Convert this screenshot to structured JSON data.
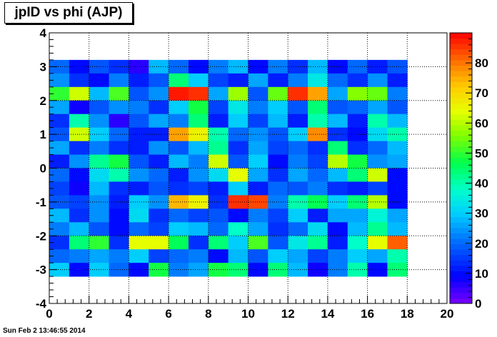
{
  "title": "jpID vs phi (AJP)",
  "timestamp": "Sun Feb  2 13:46:55 2014",
  "chart_data": {
    "type": "heatmap",
    "title": "jpID vs phi (AJP)",
    "xlabel": "",
    "ylabel": "",
    "xlim": [
      0,
      20
    ],
    "ylim": [
      -4,
      4
    ],
    "x_ticks": [
      "0",
      "2",
      "4",
      "6",
      "8",
      "10",
      "12",
      "14",
      "16",
      "18",
      "20"
    ],
    "y_ticks": [
      "-4",
      "-3",
      "-2",
      "-1",
      "0",
      "1",
      "2",
      "3",
      "4"
    ],
    "z_range": [
      0,
      90
    ],
    "z_ticks": [
      "0",
      "10",
      "20",
      "30",
      "40",
      "50",
      "60",
      "70",
      "80"
    ],
    "grid": true,
    "colorbar": "right",
    "x_edges": [
      0,
      1,
      2,
      3,
      4,
      5,
      6,
      7,
      8,
      9,
      10,
      11,
      12,
      13,
      14,
      15,
      16,
      17,
      18
    ],
    "y_edges": [
      -3.2,
      -2.8,
      -2.4,
      -2.0,
      -1.6,
      -1.2,
      -0.8,
      -0.4,
      0.0,
      0.4,
      0.8,
      1.2,
      1.6,
      2.0,
      2.4,
      2.8,
      3.2
    ],
    "z_rows_top_to_bottom": [
      [
        20,
        10,
        18,
        14,
        6,
        28,
        20,
        10,
        22,
        28,
        10,
        22,
        14,
        28,
        10,
        20,
        12,
        18
      ],
      [
        24,
        14,
        10,
        22,
        12,
        18,
        44,
        30,
        16,
        12,
        26,
        12,
        22,
        34,
        20,
        14,
        24,
        12
      ],
      [
        50,
        62,
        28,
        52,
        18,
        24,
        88,
        86,
        26,
        58,
        18,
        54,
        86,
        76,
        26,
        56,
        54,
        22
      ],
      [
        26,
        8,
        18,
        24,
        22,
        14,
        30,
        48,
        16,
        34,
        22,
        30,
        18,
        44,
        18,
        20,
        26,
        18
      ],
      [
        14,
        40,
        24,
        6,
        18,
        26,
        22,
        44,
        12,
        30,
        16,
        28,
        12,
        40,
        28,
        12,
        40,
        28
      ],
      [
        18,
        62,
        30,
        20,
        12,
        12,
        76,
        66,
        40,
        20,
        24,
        18,
        30,
        78,
        14,
        10,
        32,
        40
      ],
      [
        26,
        14,
        22,
        14,
        12,
        24,
        18,
        28,
        42,
        14,
        26,
        16,
        20,
        14,
        44,
        14,
        20,
        28
      ],
      [
        12,
        24,
        42,
        48,
        18,
        12,
        28,
        22,
        62,
        18,
        30,
        10,
        22,
        16,
        60,
        48,
        24,
        26
      ],
      [
        20,
        10,
        32,
        40,
        24,
        20,
        12,
        24,
        32,
        64,
        26,
        14,
        26,
        20,
        28,
        44,
        62,
        10
      ],
      [
        16,
        8,
        28,
        14,
        12,
        18,
        14,
        16,
        12,
        30,
        12,
        20,
        18,
        22,
        14,
        12,
        16,
        10
      ],
      [
        18,
        16,
        24,
        12,
        30,
        24,
        74,
        66,
        14,
        86,
        84,
        22,
        40,
        46,
        30,
        44,
        60,
        10
      ],
      [
        28,
        14,
        24,
        10,
        32,
        14,
        20,
        16,
        18,
        10,
        22,
        16,
        30,
        12,
        26,
        26,
        36,
        26
      ],
      [
        22,
        28,
        18,
        10,
        20,
        16,
        30,
        28,
        20,
        38,
        26,
        14,
        20,
        32,
        10,
        28,
        42,
        28
      ],
      [
        14,
        44,
        50,
        14,
        64,
        64,
        46,
        14,
        44,
        30,
        52,
        18,
        34,
        42,
        12,
        38,
        64,
        82
      ],
      [
        20,
        22,
        26,
        22,
        30,
        16,
        20,
        22,
        10,
        28,
        18,
        30,
        26,
        16,
        22,
        30,
        26,
        40
      ],
      [
        30,
        10,
        30,
        20,
        10,
        48,
        22,
        26,
        48,
        44,
        10,
        44,
        28,
        8,
        22,
        40,
        10,
        44
      ]
    ]
  }
}
